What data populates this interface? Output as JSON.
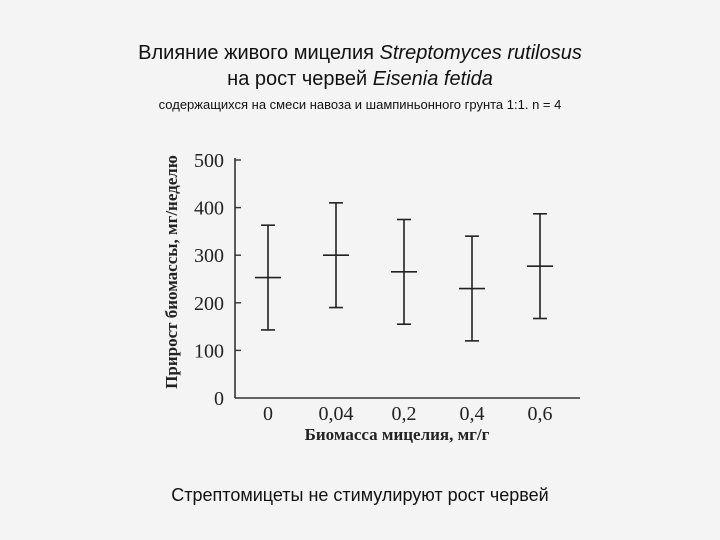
{
  "slide": {
    "title_line1_prefix": "Влияние живого мицелия ",
    "title_line1_species": "Streptomyces rutilosus",
    "title_line2_prefix": "на рост червей ",
    "title_line2_species": "Eisenia fetida",
    "subtitle": "содержащихся на смеси навоза и шампиньонного грунта 1:1. n = 4",
    "conclusion": "Стрептомицеты не стимулируют рост червей"
  },
  "chart_data": {
    "type": "errorbar",
    "xlabel": "Биомасса мицелия, мг/г",
    "ylabel": "Прирост биомассы, мг/неделю",
    "categories": [
      "0",
      "0,04",
      "0,2",
      "0,4",
      "0,6"
    ],
    "y_ticks": [
      "500",
      "400",
      "300",
      "200",
      "100",
      "0"
    ],
    "ylim": [
      0,
      500
    ],
    "series": [
      {
        "mean": [
          253,
          300,
          265,
          230,
          277
        ],
        "upper": [
          363,
          410,
          375,
          340,
          387
        ],
        "lower": [
          143,
          190,
          155,
          120,
          167
        ]
      }
    ],
    "grid": false,
    "colors": {
      "axis": "#333333",
      "marks": "#222222"
    }
  }
}
